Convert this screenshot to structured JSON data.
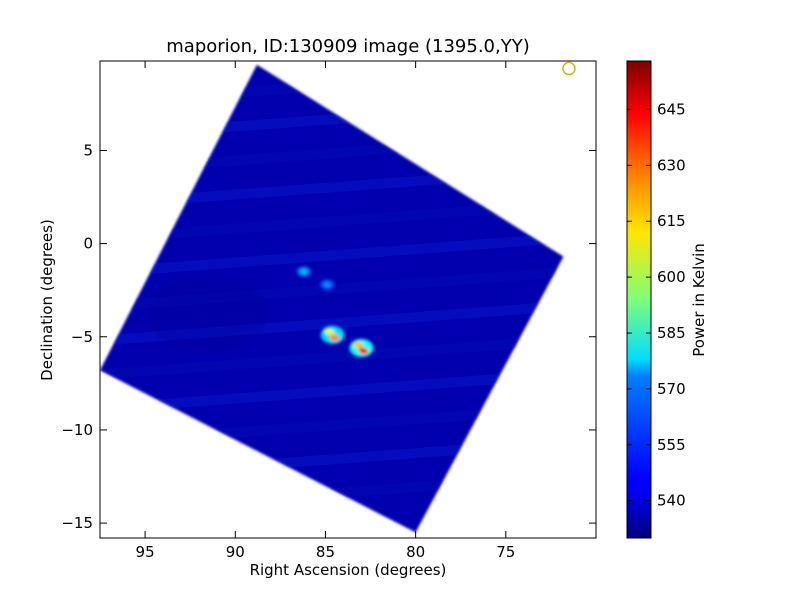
{
  "chart_data": {
    "type": "heatmap",
    "title": "maporion, ID:130909 image (1395.0,YY)",
    "xlabel": "Right Ascension (degrees)",
    "ylabel": "Declination (degrees)",
    "xlim": [
      97.5,
      70.0
    ],
    "ylim": [
      -15.8,
      9.8
    ],
    "x_ticks": [
      95,
      90,
      85,
      80,
      75
    ],
    "x_tick_labels": [
      "95",
      "90",
      "85",
      "80",
      "75"
    ],
    "y_ticks": [
      5,
      0,
      -5,
      -10,
      -15
    ],
    "y_tick_labels": [
      "5",
      "0",
      "−5",
      "−10",
      "−15"
    ],
    "grid": false,
    "colorbar": {
      "label": "Power in Kelvin",
      "range": [
        530,
        658
      ],
      "ticks": [
        540,
        555,
        570,
        585,
        600,
        615,
        630,
        645
      ],
      "tick_labels": [
        "540",
        "555",
        "570",
        "585",
        "600",
        "615",
        "630",
        "645"
      ],
      "colormap": "jet"
    },
    "coverage_corners": [
      [
        88.8,
        9.6
      ],
      [
        71.8,
        -0.7
      ],
      [
        80.0,
        -15.5
      ],
      [
        97.5,
        -6.8
      ]
    ],
    "background_level": 536,
    "hot_spots": [
      {
        "ra": 84.6,
        "dec": -4.9,
        "peak": 625
      },
      {
        "ra": 83.0,
        "dec": -5.6,
        "peak": 640
      },
      {
        "ra": 86.2,
        "dec": -1.5,
        "peak": 552
      },
      {
        "ra": 84.9,
        "dec": -2.2,
        "peak": 549
      }
    ],
    "marker": {
      "ra": 71.5,
      "dec": 9.4,
      "shape": "circle",
      "color": "#c8b400"
    }
  }
}
